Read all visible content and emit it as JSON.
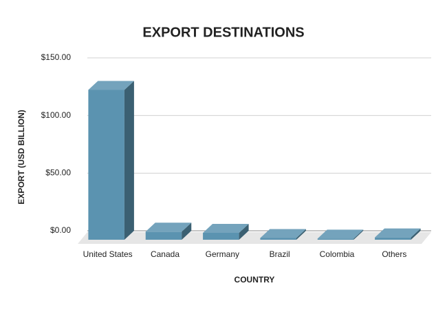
{
  "chart_data": {
    "type": "bar3d",
    "title": "EXPORT DESTINATIONS",
    "x_label": "COUNTRY",
    "y_label": "EXPORT (USD BILLION)",
    "categories": [
      "United States",
      "Canada",
      "Germany",
      "Brazil",
      "Colombia",
      "Others"
    ],
    "values": [
      130,
      7,
      6,
      1.5,
      1,
      2
    ],
    "color": "#5b93b0",
    "ylim": [
      0,
      150
    ],
    "yticks": [
      {
        "value": 0,
        "label": "$0.00"
      },
      {
        "value": 50,
        "label": "$50.00"
      },
      {
        "value": 100,
        "label": "$100.00"
      },
      {
        "value": 150,
        "label": "$150.00"
      }
    ],
    "grid": true
  }
}
